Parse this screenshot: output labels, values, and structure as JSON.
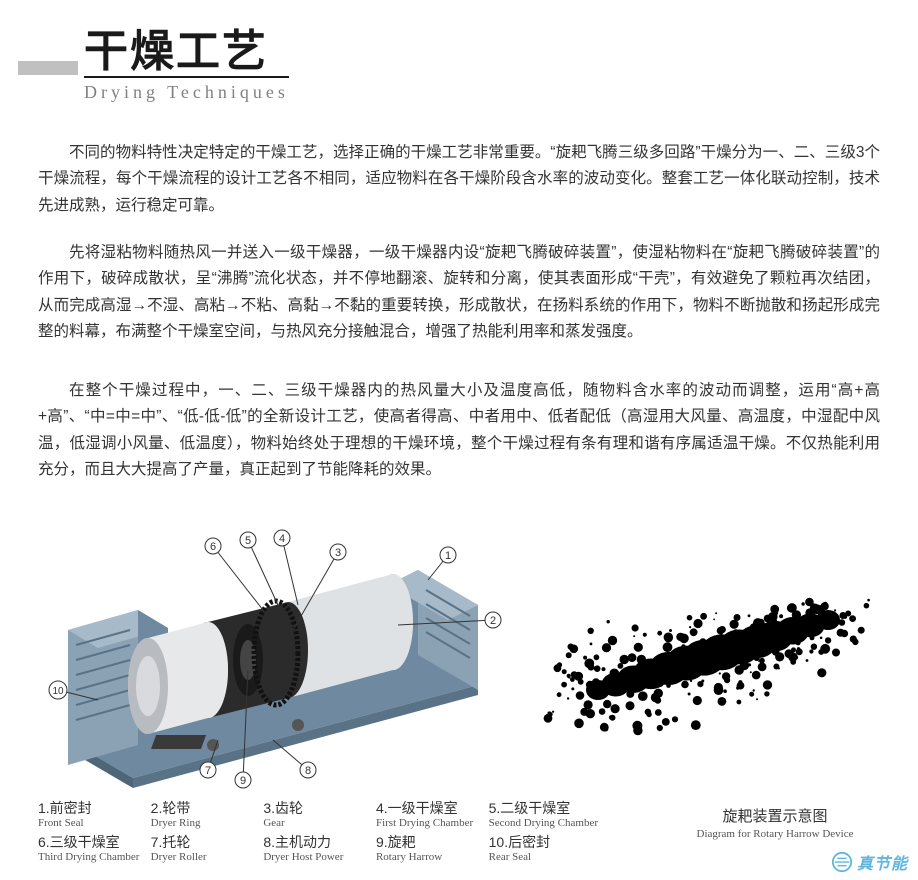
{
  "header": {
    "cn": "干燥工艺",
    "en": "Drying  Techniques"
  },
  "paragraphs": {
    "p1": "不同的物料特性决定特定的干燥工艺，选择正确的干燥工艺非常重要。“旋耙飞腾三级多回路”干燥分为一、二、三级3个干燥流程，每个干燥流程的设计工艺各不相同，适应物料在各干燥阶段含水率的波动变化。整套工艺一体化联动控制，技术先进成熟，运行稳定可靠。",
    "p2": "先将湿粘物料随热风一并送入一级干燥器，一级干燥器内设“旋耙飞腾破碎装置”，使湿粘物料在“旋耙飞腾破碎装置”的作用下，破碎成散状，呈“沸腾”流化状态，并不停地翻滚、旋转和分离，使其表面形成“干壳”，有效避免了颗粒再次结团，从而完成高湿→不湿、高粘→不粘、高黏→不黏的重要转换，形成散状，在扬料系统的作用下，物料不断抛散和扬起形成完整的料幕，布满整个干燥室空间，与热风充分接触混合，增强了热能利用率和蒸发强度。",
    "p3": "在整个干燥过程中，一、二、三级干燥器内的热风量大小及温度高低，随物料含水率的波动而调整，运用“高+高+高”、“中=中=中”、“低-低-低”的全新设计工艺，使高者得高、中者用中、低者配低（高湿用大风量、高温度，中湿配中风温，低湿调小风量、低温度），物料始终处于理想的干燥环境，整个干燥过程有条有理和谐有序属适温干燥。不仅热能利用充分，而且大大提高了产量，真正起到了节能降耗的效果。"
  },
  "diagram": {
    "callouts": [
      "1",
      "2",
      "3",
      "4",
      "5",
      "6",
      "7",
      "8",
      "9",
      "10"
    ],
    "colors": {
      "base": "#6f89a0",
      "base_light": "#8ba2b5",
      "drum": "#cfd2d4",
      "drum_light": "#e8eaec",
      "drum_dark": "#a0a4a8",
      "inner": "#2b2b2b",
      "line": "#333333"
    }
  },
  "legend": [
    {
      "n": "1",
      "cn": "前密封",
      "en": "Front Seal"
    },
    {
      "n": "2",
      "cn": "轮带",
      "en": "Dryer Ring"
    },
    {
      "n": "3",
      "cn": "齿轮",
      "en": "Gear"
    },
    {
      "n": "4",
      "cn": "一级干燥室",
      "en": "First Drying Chamber"
    },
    {
      "n": "5",
      "cn": "二级干燥室",
      "en": "Second Drying Chamber"
    },
    {
      "n": "6",
      "cn": "三级干燥室",
      "en": "Third Drying Chamber"
    },
    {
      "n": "7",
      "cn": "托轮",
      "en": "Dryer Roller"
    },
    {
      "n": "8",
      "cn": "主机动力",
      "en": "Dryer Host Power"
    },
    {
      "n": "9",
      "cn": "旋耙",
      "en": "Rotary Harrow"
    },
    {
      "n": "10",
      "cn": "后密封",
      "en": "Rear Seal"
    }
  ],
  "right_caption": {
    "cn": "旋耙装置示意图",
    "en": "Diagram for Rotary Harrow Device"
  },
  "watermark": {
    "text": "真节能",
    "logo_color": "#3aa4d8"
  }
}
